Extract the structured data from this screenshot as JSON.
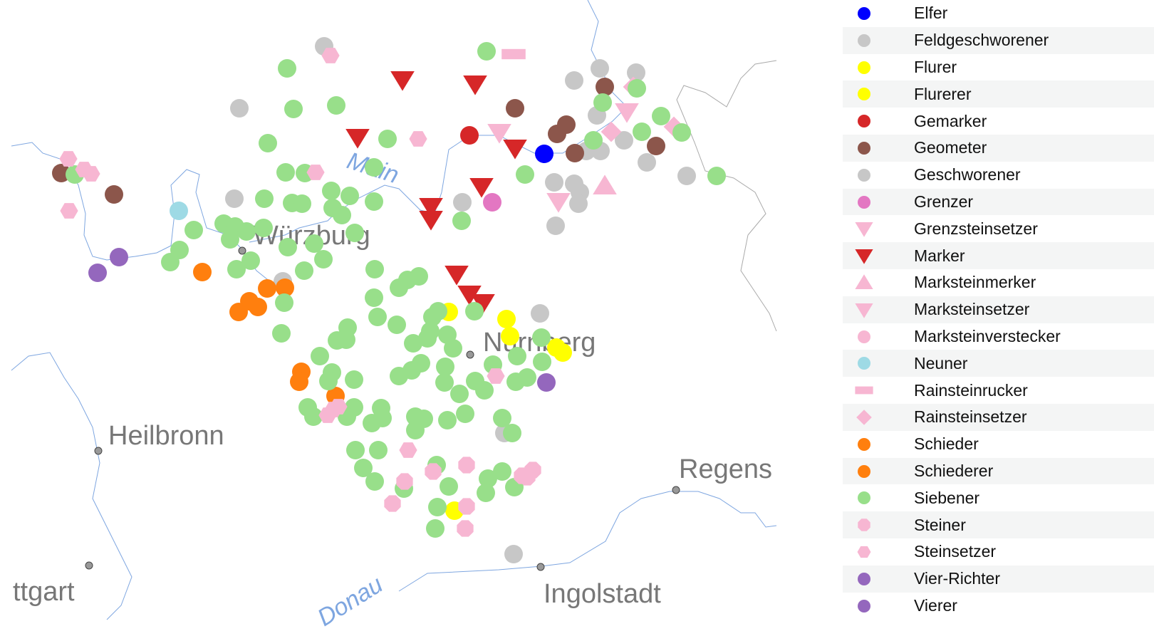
{
  "map": {
    "cities": [
      "Würzburg",
      "Nürnberg",
      "Heilbronn",
      "Regens",
      "Ingolstadt",
      "ttgart"
    ],
    "rivers": [
      "Main",
      "Donau"
    ]
  },
  "legend": [
    {
      "label": "Elfer",
      "color": "#0000ff",
      "shape": "circle"
    },
    {
      "label": "Feldgeschworener",
      "color": "#c7c7c7",
      "shape": "circle"
    },
    {
      "label": "Flurer",
      "color": "#ffff00",
      "shape": "circle"
    },
    {
      "label": "Flurerer",
      "color": "#ffff00",
      "shape": "circle"
    },
    {
      "label": "Gemarker",
      "color": "#d62728",
      "shape": "circle"
    },
    {
      "label": "Geometer",
      "color": "#8c564b",
      "shape": "circle"
    },
    {
      "label": "Geschworener",
      "color": "#c7c7c7",
      "shape": "circle"
    },
    {
      "label": "Grenzer",
      "color": "#e377c2",
      "shape": "circle"
    },
    {
      "label": "Grenzsteinsetzer",
      "color": "#f7b6d2",
      "shape": "triangle-down"
    },
    {
      "label": "Marker",
      "color": "#d62728",
      "shape": "triangle-down"
    },
    {
      "label": "Marksteinmerker",
      "color": "#f7b6d2",
      "shape": "triangle-up"
    },
    {
      "label": "Marksteinsetzer",
      "color": "#f7b6d2",
      "shape": "triangle-down"
    },
    {
      "label": "Marksteinverstecker",
      "color": "#f7b6d2",
      "shape": "circle"
    },
    {
      "label": "Neuner",
      "color": "#9edae5",
      "shape": "circle"
    },
    {
      "label": "Rainsteinrucker",
      "color": "#f7b6d2",
      "shape": "rect"
    },
    {
      "label": "Rainsteinsetzer",
      "color": "#f7b6d2",
      "shape": "diamond"
    },
    {
      "label": "Schieder",
      "color": "#ff7f0e",
      "shape": "circle"
    },
    {
      "label": "Schiederer",
      "color": "#ff7f0e",
      "shape": "circle"
    },
    {
      "label": "Siebener",
      "color": "#98df8a",
      "shape": "circle"
    },
    {
      "label": "Steiner",
      "color": "#f7b6d2",
      "shape": "octagon"
    },
    {
      "label": "Steinsetzer",
      "color": "#f7b6d2",
      "shape": "hexagon"
    },
    {
      "label": "Vier-Richter",
      "color": "#9467bd",
      "shape": "circle"
    },
    {
      "label": "Vierer",
      "color": "#9467bd",
      "shape": "circle"
    }
  ]
}
